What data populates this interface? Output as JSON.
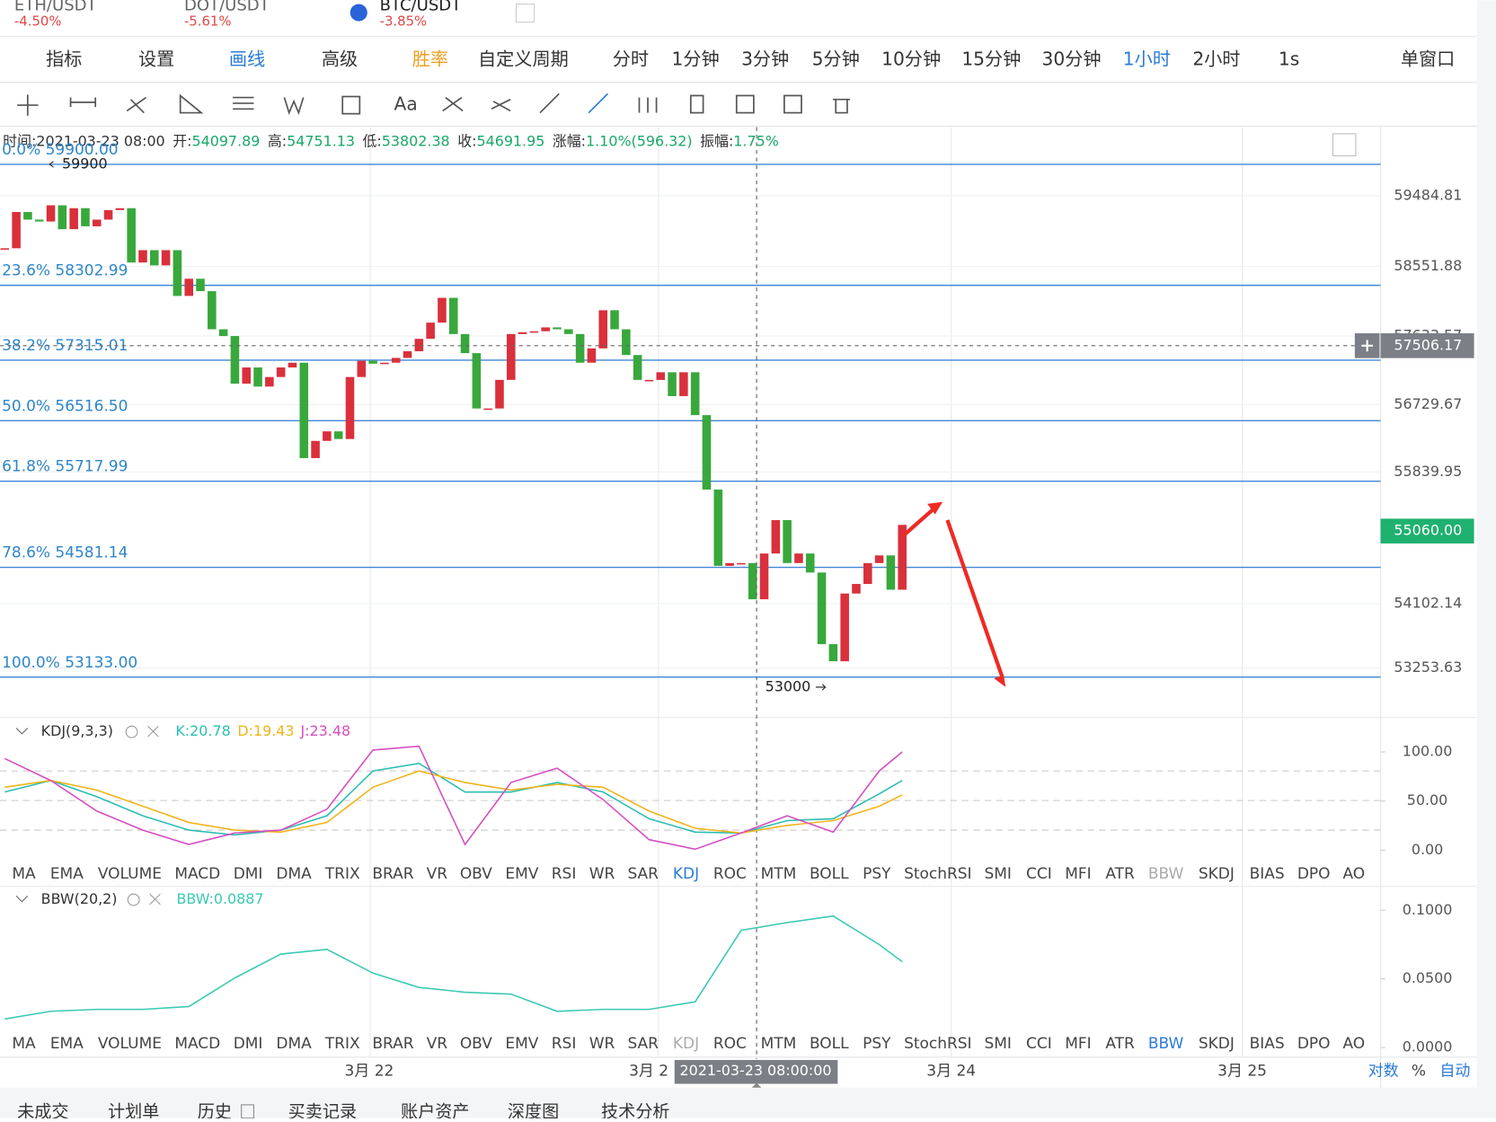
{
  "tabs": [
    {
      "pair": "ETH/USDT",
      "change": "-4.50%"
    },
    {
      "pair": "DOT/USDT",
      "change": "-5.61%"
    },
    {
      "pair": "BTC/USDT",
      "change": "-3.85%"
    }
  ],
  "toolbar": [
    "指标",
    "设置",
    "画线",
    "高级",
    "胜率",
    "自定义周期",
    "分时",
    "1分钟",
    "3分钟",
    "5分钟",
    "10分钟",
    "15分钟",
    "30分钟",
    "1小时",
    "2小时",
    "1s",
    "单窗口"
  ],
  "drawing_toolbar": {
    "text_tool": "Aa"
  },
  "info": [
    {
      "label": "时间:",
      "value": "2021-03-23 08:00"
    },
    {
      "label": "开:",
      "value": "54097.89"
    },
    {
      "label": "高:",
      "value": "54751.13"
    },
    {
      "label": "低:",
      "value": "53802.38"
    },
    {
      "label": "收:",
      "value": "54691.95"
    },
    {
      "label": "涨幅:",
      "value": "1.10%(596.32)"
    },
    {
      "label": "振幅:",
      "value": "1.75%"
    }
  ],
  "price_chart": {
    "type": "candlestick",
    "ylim": [
      52624.35,
      60428.91
    ],
    "yticks": [
      59484.81,
      58551.88,
      57633.57,
      56729.67,
      55839.95,
      54102.14,
      53253.63
    ],
    "closes": [
      58792,
      59271,
      59170,
      59145,
      59359,
      59044,
      59321,
      59082,
      59170,
      59296,
      59321,
      58604,
      58767,
      58566,
      58767,
      58163,
      58390,
      58226,
      57723,
      57634,
      57005,
      57219,
      56967,
      57093,
      57219,
      57282,
      56023,
      56250,
      56376,
      56275,
      57093,
      57307,
      57269,
      57282,
      57345,
      57433,
      57597,
      57811,
      58138,
      57660,
      57408,
      56678,
      56678,
      57055,
      57660,
      57685,
      57697,
      57748,
      57723,
      57660,
      57282,
      57471,
      57974,
      57723,
      57383,
      57055,
      57055,
      57156,
      56841,
      57156,
      56590,
      55608,
      54601,
      54638,
      54638,
      54160,
      54764,
      55205,
      54638,
      54764,
      54513,
      53568,
      53342,
      54236,
      54362,
      54638,
      54739,
      54286,
      55142
    ],
    "fib_levels": [
      {
        "label": "0.0% 59900.00",
        "value": 59900
      },
      {
        "label": "23.6% 58302.99",
        "value": 58302.99
      },
      {
        "label": "38.2% 57315.01",
        "value": 57315.01
      },
      {
        "label": "50.0% 56516.50",
        "value": 56516.5
      },
      {
        "label": "61.8% 55717.99",
        "value": 55717.99
      },
      {
        "label": "78.6% 54581.14",
        "value": 54581.14
      },
      {
        "label": "100.0% 53133.00",
        "value": 53133
      }
    ],
    "annotations": [
      59900,
      53000
    ],
    "crosshair_price": 57506.17,
    "last_price": {
      "value": 55060,
      "label": "55060.00"
    }
  },
  "kdj": {
    "type": "line",
    "title": "KDJ(9,3,3)",
    "ylim": [
      -8.7,
      127.2
    ],
    "yticks": [
      {
        "value": 100,
        "label": "100.00"
      },
      {
        "value": 50,
        "label": "50.00"
      },
      {
        "value": 0,
        "label": "0.00"
      }
    ],
    "x": [
      0,
      4,
      8,
      12,
      16,
      20,
      24,
      28,
      32,
      36,
      40,
      44,
      48,
      52,
      56,
      60,
      64,
      68,
      72,
      76,
      78
    ],
    "series": [
      {
        "label": "K:20.78",
        "color": "#2ebdb3",
        "values": [
          59.2,
          70.9,
          54.4,
          35.0,
          20.4,
          15.5,
          20.4,
          35.0,
          80.6,
          88.3,
          59.2,
          59.2,
          68.9,
          59.2,
          32.0,
          18.4,
          17.5,
          30.1,
          32.0,
          57.3,
          70.9
        ]
      },
      {
        "label": "D:19.43",
        "color": "#f0b41c",
        "values": [
          64.1,
          70.9,
          61.2,
          44.7,
          28.2,
          20.4,
          18.4,
          28.2,
          64.1,
          80.6,
          68.9,
          61.2,
          67.0,
          64.1,
          39.8,
          22.3,
          17.5,
          25.2,
          30.1,
          44.7,
          56.3
        ]
      },
      {
        "label": "J:23.48",
        "color": "#d64fc0",
        "values": [
          93.2,
          70.9,
          39.8,
          20.4,
          5.8,
          17.5,
          20.4,
          41.7,
          101.9,
          105.8,
          5.8,
          68.9,
          83.5,
          51.5,
          10.7,
          1.0,
          17.5,
          35.0,
          18.4,
          80.6,
          100.0
        ]
      }
    ]
  },
  "bbw": {
    "type": "line",
    "title": "BBW(20,2)",
    "ylim": [
      -0.0049,
      0.1132
    ],
    "yticks": [
      {
        "value": 0.1,
        "label": "0.1000"
      },
      {
        "value": 0.05,
        "label": "0.0500"
      },
      {
        "value": 0,
        "label": "0.0000"
      }
    ],
    "x": [
      0,
      4,
      8,
      12,
      16,
      20,
      24,
      28,
      32,
      36,
      40,
      44,
      48,
      52,
      56,
      60,
      64,
      68,
      72,
      76,
      78
    ],
    "series": [
      {
        "label": "BBW:0.0887",
        "color": "#3cc9b4",
        "values": [
          0.0208,
          0.0264,
          0.0278,
          0.0278,
          0.0299,
          0.0507,
          0.0681,
          0.0715,
          0.0542,
          0.0438,
          0.0403,
          0.0389,
          0.0264,
          0.0278,
          0.0278,
          0.0333,
          0.0854,
          0.091,
          0.0958,
          0.075,
          0.0625
        ]
      }
    ]
  },
  "indicator_tabs": [
    "MA",
    "EMA",
    "VOLUME",
    "MACD",
    "DMI",
    "DMA",
    "TRIX",
    "BRAR",
    "VR",
    "OBV",
    "EMV",
    "RSI",
    "WR",
    "SAR",
    "KDJ",
    "ROC",
    "MTM",
    "BOLL",
    "PSY",
    "StochRSI",
    "SMI",
    "CCI",
    "MFI",
    "ATR",
    "BBW",
    "SKDJ",
    "BIAS",
    "DPO",
    "AO"
  ],
  "x_axis": {
    "labels": [
      "3月 22",
      "3月 2",
      "3月 24",
      "3月 25"
    ],
    "crosshair_label": "2021-03-23 08:00:00",
    "scale_options": [
      "对数",
      "%",
      "自动"
    ]
  },
  "bottom_tabs": [
    "未成交",
    "计划单",
    "历史",
    "买卖记录",
    "账户资产",
    "深度图",
    "技术分析"
  ]
}
